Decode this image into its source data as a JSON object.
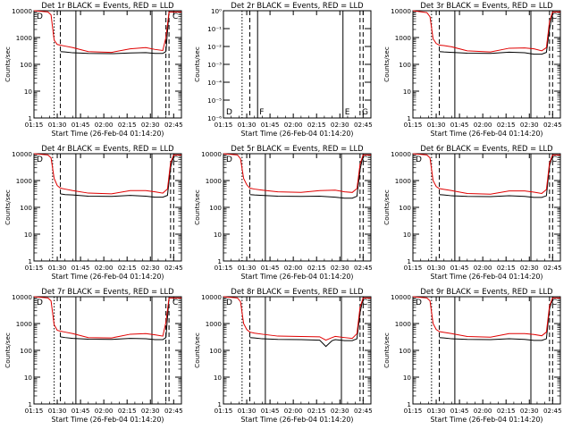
{
  "figure": {
    "x_ticks": [
      "01:15",
      "01:30",
      "01:45",
      "02:00",
      "02:15",
      "02:30",
      "02:45"
    ],
    "x_tick_minutes": [
      0,
      15,
      30,
      45,
      60,
      75,
      90
    ],
    "x_range_minutes": [
      0,
      95
    ],
    "y_ticks_log": [
      "1",
      "10",
      "100",
      "1000",
      "10000"
    ],
    "y_ticks_empty": [
      "10⁰",
      "10⁻¹",
      "10⁻²",
      "10⁻³",
      "10⁻⁴",
      "10⁻⁵",
      "10⁻⁶"
    ],
    "xlabel": "Start Time (26-Feb-04 01:14:20)",
    "ylabel": "Counts/sec",
    "colors": {
      "events": "#000000",
      "lld": "#e00000"
    }
  },
  "chart_data": [
    {
      "type": "line",
      "title": "Det 1r BLACK = Events, RED = LLD",
      "log": true,
      "ylim": [
        1,
        10000
      ],
      "markers": {
        "dotted": 13,
        "dashed": 17,
        "solid": 27,
        "solid2": 76,
        "dashed2": [
          85,
          87
        ]
      },
      "letters": [
        "D",
        "",
        "",
        "",
        "C"
      ],
      "x": [
        0,
        9,
        11,
        13,
        15,
        17,
        20,
        25,
        35,
        50,
        62,
        72,
        78,
        83,
        85,
        87,
        90,
        93,
        95
      ],
      "series": [
        {
          "name": "Events",
          "values": [
            null,
            null,
            null,
            null,
            null,
            300,
            290,
            270,
            255,
            250,
            265,
            275,
            255,
            255,
            300,
            9000,
            9000,
            9000,
            9000
          ]
        },
        {
          "name": "LLD",
          "values": [
            10000,
            9000,
            7000,
            800,
            550,
            520,
            480,
            420,
            300,
            280,
            380,
            420,
            360,
            330,
            1000,
            9000,
            9000,
            9000,
            9000
          ]
        }
      ]
    },
    {
      "type": "line",
      "title": "Det 2r BLACK = Events, RED = LLD",
      "log": true,
      "ylim": [
        1e-06,
        1
      ],
      "empty": true,
      "markers": {
        "dotted": 12,
        "dashed": 17,
        "solid": 22,
        "solid2": 77,
        "dashed2": [
          88,
          90
        ]
      },
      "letters": [
        "D",
        "F",
        "",
        "E",
        "G"
      ],
      "x": [],
      "series": []
    },
    {
      "type": "line",
      "title": "Det 3r BLACK = Events, RED = LLD",
      "log": true,
      "ylim": [
        1,
        10000
      ],
      "markers": {
        "dotted": 12,
        "dashed": 17,
        "solid": 27,
        "solid2": 76,
        "dashed2": [
          88,
          90
        ]
      },
      "letters": [
        "",
        "",
        "",
        "",
        "C"
      ],
      "x": [
        0,
        9,
        11,
        13,
        15,
        17,
        20,
        25,
        35,
        50,
        62,
        72,
        78,
        83,
        86,
        88,
        90,
        93,
        95
      ],
      "series": [
        {
          "name": "Events",
          "values": [
            null,
            null,
            null,
            null,
            null,
            300,
            290,
            280,
            260,
            255,
            285,
            270,
            240,
            240,
            280,
            2000,
            9000,
            9000,
            9000
          ]
        },
        {
          "name": "LLD",
          "values": [
            10000,
            8500,
            6000,
            900,
            600,
            520,
            500,
            450,
            320,
            290,
            400,
            410,
            380,
            320,
            420,
            4000,
            9000,
            9000,
            9000
          ]
        }
      ]
    },
    {
      "type": "line",
      "title": "Det 4r BLACK = Events, RED = LLD",
      "log": true,
      "ylim": [
        1,
        10000
      ],
      "markers": {
        "dotted": 12,
        "dashed": 17,
        "solid": 27,
        "solid2": 76,
        "dashed2": [
          88,
          90
        ]
      },
      "letters": [
        "D",
        "",
        "",
        "",
        "C"
      ],
      "x": [
        0,
        9,
        11,
        13,
        15,
        17,
        20,
        25,
        35,
        50,
        62,
        72,
        78,
        83,
        86,
        88,
        90,
        93,
        95
      ],
      "series": [
        {
          "name": "Events",
          "values": [
            null,
            null,
            null,
            null,
            null,
            320,
            300,
            290,
            260,
            255,
            280,
            260,
            240,
            240,
            280,
            3000,
            9000,
            9000,
            9000
          ]
        },
        {
          "name": "LLD",
          "values": [
            10000,
            9000,
            7000,
            1200,
            650,
            520,
            480,
            420,
            340,
            320,
            420,
            420,
            380,
            340,
            480,
            4500,
            9000,
            9000,
            9000
          ]
        }
      ]
    },
    {
      "type": "line",
      "title": "Det 5r BLACK = Events, RED = LLD",
      "log": true,
      "ylim": [
        1,
        10000
      ],
      "markers": {
        "dotted": 12,
        "dashed": 17,
        "solid": 27,
        "solid2": 76,
        "dashed2": [
          88,
          90
        ]
      },
      "letters": [
        "D",
        "",
        "",
        "",
        "C"
      ],
      "x": [
        0,
        9,
        11,
        13,
        15,
        17,
        20,
        25,
        35,
        50,
        62,
        72,
        78,
        83,
        86,
        88,
        90,
        93,
        95
      ],
      "series": [
        {
          "name": "Events",
          "values": [
            null,
            null,
            null,
            null,
            null,
            300,
            290,
            280,
            260,
            255,
            260,
            240,
            220,
            220,
            260,
            2500,
            9000,
            9000,
            9000
          ]
        },
        {
          "name": "LLD",
          "values": [
            10000,
            9000,
            6500,
            1200,
            700,
            520,
            480,
            440,
            380,
            360,
            420,
            440,
            380,
            360,
            500,
            4000,
            9000,
            9000,
            9000
          ]
        }
      ]
    },
    {
      "type": "line",
      "title": "Det 6r BLACK = Events, RED = LLD",
      "log": true,
      "ylim": [
        1,
        10000
      ],
      "markers": {
        "dotted": 12,
        "dashed": 17,
        "solid": 27,
        "solid2": 76,
        "dashed2": [
          88,
          90
        ]
      },
      "letters": [
        "D",
        "",
        "",
        "",
        "C"
      ],
      "x": [
        0,
        9,
        11,
        13,
        15,
        17,
        20,
        25,
        35,
        50,
        62,
        72,
        78,
        83,
        86,
        88,
        90,
        93,
        95
      ],
      "series": [
        {
          "name": "Events",
          "values": [
            null,
            null,
            null,
            null,
            null,
            300,
            290,
            270,
            255,
            250,
            270,
            255,
            235,
            235,
            270,
            3500,
            9000,
            9000,
            9000
          ]
        },
        {
          "name": "LLD",
          "values": [
            10000,
            9000,
            7000,
            1000,
            600,
            500,
            470,
            420,
            330,
            310,
            410,
            410,
            370,
            330,
            460,
            4500,
            9000,
            9000,
            9000
          ]
        }
      ]
    },
    {
      "type": "line",
      "title": "Det 7r BLACK = Events, RED = LLD",
      "log": true,
      "ylim": [
        1,
        10000
      ],
      "markers": {
        "dotted": 13,
        "dashed": 17,
        "solid": 27,
        "solid2": 76,
        "dashed2": [
          85,
          87
        ]
      },
      "letters": [
        "D",
        "",
        "",
        "",
        "C"
      ],
      "x": [
        0,
        9,
        11,
        13,
        15,
        17,
        20,
        25,
        35,
        50,
        62,
        72,
        78,
        83,
        85,
        87,
        90,
        93,
        95
      ],
      "series": [
        {
          "name": "Events",
          "values": [
            null,
            null,
            null,
            null,
            null,
            320,
            300,
            280,
            260,
            255,
            280,
            270,
            250,
            250,
            300,
            9000,
            9000,
            9000,
            9000
          ]
        },
        {
          "name": "LLD",
          "values": [
            10000,
            9000,
            7000,
            900,
            560,
            520,
            480,
            420,
            300,
            290,
            400,
            420,
            380,
            340,
            1100,
            9000,
            9000,
            9000,
            9000
          ]
        }
      ]
    },
    {
      "type": "line",
      "title": "Det 8r BLACK = Events, RED = LLD",
      "log": true,
      "ylim": [
        1,
        10000
      ],
      "markers": {
        "dotted": 12,
        "dashed": 17,
        "solid": 27,
        "solid2": 76,
        "dashed2": [
          88,
          90
        ]
      },
      "letters": [
        "D",
        "",
        "",
        "",
        "C"
      ],
      "x": [
        0,
        9,
        11,
        13,
        15,
        17,
        20,
        25,
        35,
        50,
        62,
        66,
        70,
        72,
        78,
        83,
        86,
        88,
        90,
        93,
        95
      ],
      "series": [
        {
          "name": "Events",
          "values": [
            null,
            null,
            null,
            null,
            null,
            300,
            290,
            270,
            255,
            250,
            240,
            140,
            230,
            250,
            230,
            230,
            270,
            2500,
            9000,
            9000,
            9000
          ]
        },
        {
          "name": "LLD",
          "values": [
            10000,
            9000,
            6500,
            1000,
            600,
            480,
            440,
            400,
            340,
            330,
            320,
            240,
            300,
            330,
            300,
            280,
            420,
            4000,
            9000,
            9000,
            9000
          ]
        }
      ]
    },
    {
      "type": "line",
      "title": "Det 9r BLACK = Events, RED = LLD",
      "log": true,
      "ylim": [
        1,
        10000
      ],
      "markers": {
        "dotted": 12,
        "dashed": 17,
        "solid": 27,
        "solid2": 76,
        "dashed2": [
          88,
          90
        ]
      },
      "letters": [
        "D",
        "",
        "",
        "",
        "C"
      ],
      "x": [
        0,
        9,
        11,
        13,
        15,
        17,
        20,
        25,
        35,
        50,
        62,
        72,
        78,
        83,
        86,
        88,
        90,
        93,
        95
      ],
      "series": [
        {
          "name": "Events",
          "values": [
            null,
            null,
            null,
            null,
            null,
            300,
            290,
            270,
            255,
            250,
            270,
            255,
            235,
            235,
            270,
            3500,
            9000,
            9000,
            9000
          ]
        },
        {
          "name": "LLD",
          "values": [
            10000,
            9000,
            7000,
            1000,
            600,
            500,
            470,
            420,
            330,
            310,
            420,
            420,
            390,
            350,
            480,
            4500,
            9000,
            9000,
            9000
          ]
        }
      ]
    }
  ]
}
